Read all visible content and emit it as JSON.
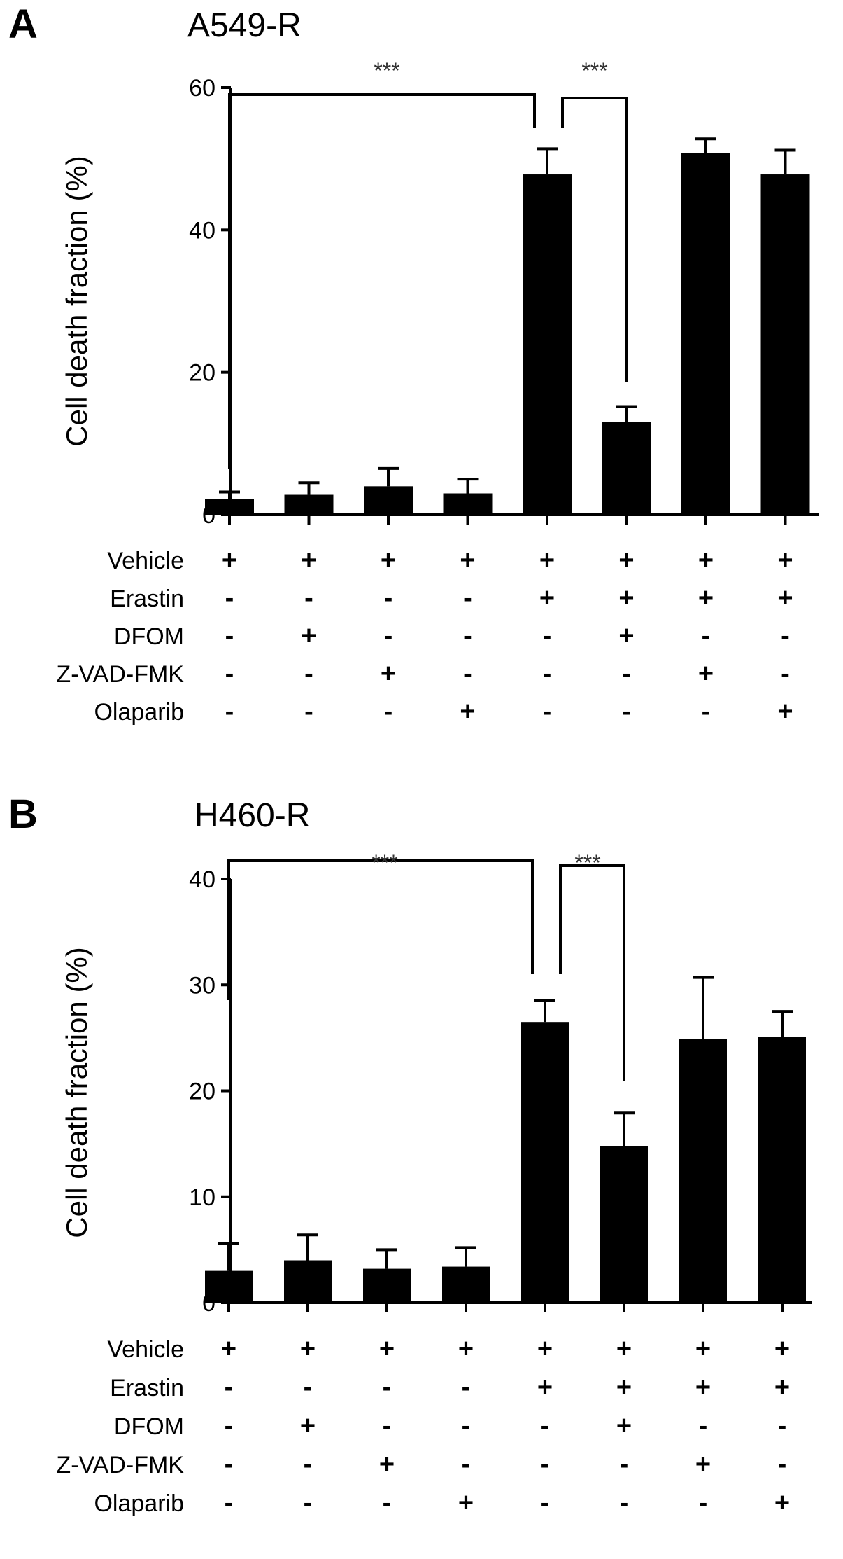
{
  "chart_data": [
    {
      "type": "bar",
      "panel_label": "A",
      "title": "A549-R",
      "ylabel": "Cell death fraction (%)",
      "ylim": [
        0,
        60
      ],
      "yticks": [
        0,
        20,
        40,
        60
      ],
      "values": [
        2.2,
        2.8,
        4.0,
        3.0,
        47.8,
        13.0,
        50.8,
        47.8
      ],
      "errors": [
        1.0,
        1.7,
        2.5,
        2.0,
        3.6,
        2.2,
        2.0,
        3.4
      ],
      "conditions": [
        {
          "label": "Vehicle",
          "marks": [
            "+",
            "+",
            "+",
            "+",
            "+",
            "+",
            "+",
            "+"
          ]
        },
        {
          "label": "Erastin",
          "marks": [
            "-",
            "-",
            "-",
            "-",
            "+",
            "+",
            "+",
            "+"
          ]
        },
        {
          "label": "DFOM",
          "marks": [
            "-",
            "+",
            "-",
            "-",
            "-",
            "+",
            "-",
            "-"
          ]
        },
        {
          "label": "Z-VAD-FMK",
          "marks": [
            "-",
            "-",
            "+",
            "-",
            "-",
            "-",
            "+",
            "-"
          ]
        },
        {
          "label": "Olaparib",
          "marks": [
            "-",
            "-",
            "-",
            "+",
            "-",
            "-",
            "-",
            "+"
          ]
        }
      ],
      "significance": [
        {
          "from": 0,
          "to": 4,
          "label": "***"
        },
        {
          "from": 4,
          "to": 5,
          "label": "***"
        }
      ]
    },
    {
      "type": "bar",
      "panel_label": "B",
      "title": "H460-R",
      "ylabel": "Cell death fraction (%)",
      "ylim": [
        0,
        40
      ],
      "yticks": [
        0,
        10,
        20,
        30,
        40
      ],
      "values": [
        3.0,
        4.0,
        3.2,
        3.4,
        26.5,
        14.8,
        24.9,
        25.1
      ],
      "errors": [
        2.6,
        2.4,
        1.8,
        1.8,
        2.0,
        3.1,
        5.8,
        2.4
      ],
      "conditions": [
        {
          "label": "Vehicle",
          "marks": [
            "+",
            "+",
            "+",
            "+",
            "+",
            "+",
            "+",
            "+"
          ]
        },
        {
          "label": "Erastin",
          "marks": [
            "-",
            "-",
            "-",
            "-",
            "+",
            "+",
            "+",
            "+"
          ]
        },
        {
          "label": "DFOM",
          "marks": [
            "-",
            "+",
            "-",
            "-",
            "-",
            "+",
            "-",
            "-"
          ]
        },
        {
          "label": "Z-VAD-FMK",
          "marks": [
            "-",
            "-",
            "+",
            "-",
            "-",
            "-",
            "+",
            "-"
          ]
        },
        {
          "label": "Olaparib",
          "marks": [
            "-",
            "-",
            "-",
            "+",
            "-",
            "-",
            "-",
            "+"
          ]
        }
      ],
      "significance": [
        {
          "from": 0,
          "to": 4,
          "label": "***"
        },
        {
          "from": 4,
          "to": 5,
          "label": "***"
        }
      ]
    }
  ]
}
